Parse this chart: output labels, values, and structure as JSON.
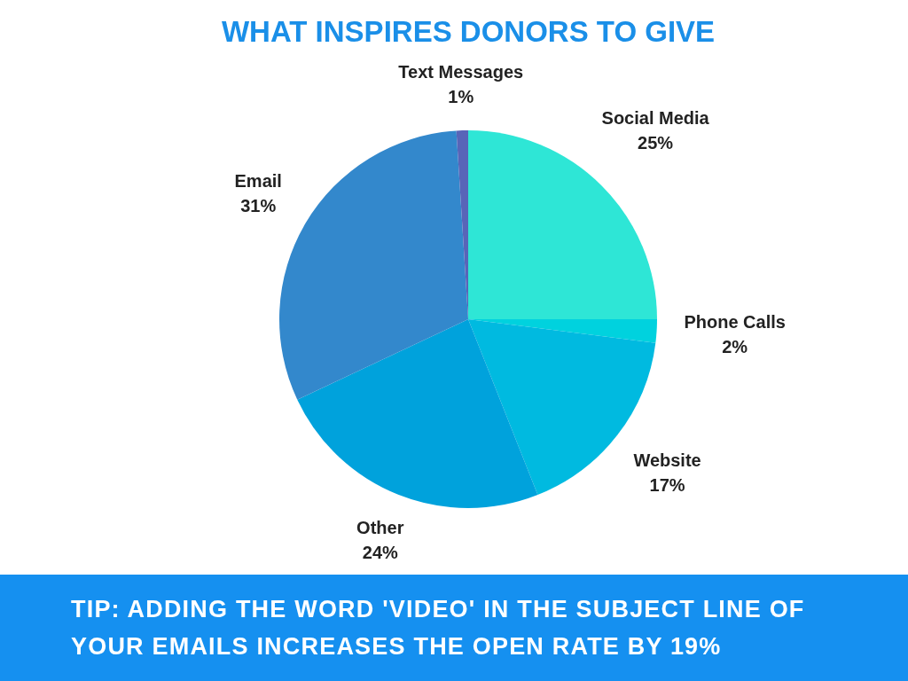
{
  "chart_data": {
    "type": "pie",
    "title": "WHAT INSPIRES DONORS TO GIVE",
    "categories": [
      "Social Media",
      "Phone Calls",
      "Website",
      "Other",
      "Email",
      "Text Messages"
    ],
    "values": [
      25,
      2,
      17,
      24,
      31,
      1
    ],
    "colors": [
      "#2ee6d6",
      "#00d2de",
      "#00bae0",
      "#00a2dc",
      "#3388cc",
      "#5865b8"
    ],
    "value_labels": [
      "25%",
      "2%",
      "17%",
      "24%",
      "31%",
      "1%"
    ],
    "annotations": [
      "TIP: ADDING THE WORD 'VIDEO' IN THE SUBJECT LINE OF YOUR EMAILS INCREASES THE OPEN RATE BY 19%"
    ]
  }
}
